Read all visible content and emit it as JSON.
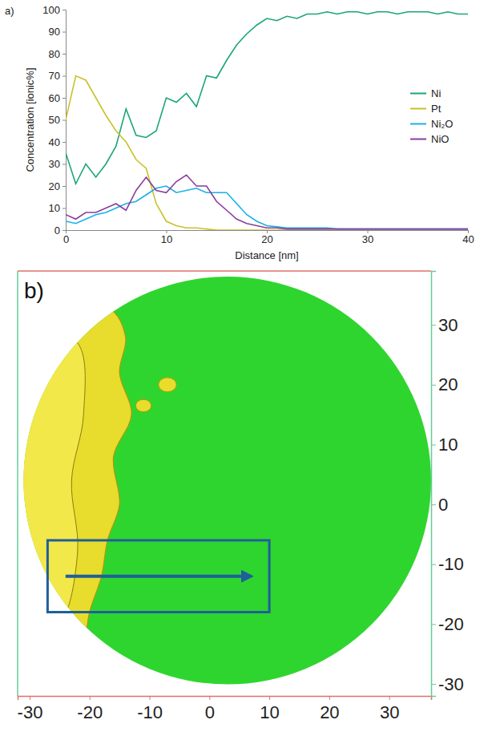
{
  "chart_data": [
    {
      "type": "line",
      "panel": "a)",
      "x_label": "Distance [nm]",
      "y_label": "Concentration [ionic%]",
      "x": [
        0,
        1,
        2,
        3,
        4,
        5,
        6,
        7,
        8,
        9,
        10,
        11,
        12,
        13,
        14,
        15,
        16,
        17,
        18,
        19,
        20,
        21,
        22,
        23,
        24,
        25,
        26,
        27,
        28,
        29,
        30,
        31,
        32,
        33,
        34,
        35,
        36,
        37,
        38,
        39,
        40
      ],
      "series": [
        {
          "name": "Ni",
          "color": "#1aa57a",
          "values": [
            35,
            21,
            30,
            24,
            30,
            38,
            55,
            43,
            42,
            45,
            60,
            58,
            62,
            56,
            70,
            69,
            77,
            84,
            89,
            93,
            96,
            95,
            97,
            96,
            98,
            98,
            99,
            98,
            99,
            99,
            98,
            99,
            99,
            98,
            99,
            99,
            99,
            98,
            99,
            98,
            98
          ]
        },
        {
          "name": "Pt",
          "color": "#c9c12c",
          "values": [
            50,
            70,
            68,
            60,
            52,
            45,
            40,
            32,
            28,
            12,
            4,
            2,
            1,
            1,
            0.5,
            0,
            0,
            0,
            0,
            0,
            0,
            0,
            0,
            0,
            0,
            0,
            0,
            0,
            0,
            0,
            0,
            0,
            0,
            0,
            0,
            0,
            0,
            0,
            0,
            0,
            0
          ]
        },
        {
          "name": "Ni₂O",
          "color": "#1ab0e8",
          "values": [
            4,
            3,
            5,
            7,
            8,
            10,
            12,
            13,
            16,
            19,
            20,
            17,
            18,
            19,
            17,
            17,
            17,
            12,
            7,
            4,
            2,
            1.5,
            1,
            1,
            1,
            1,
            1,
            0.5,
            0.5,
            0.5,
            0.5,
            0.5,
            0.5,
            0.5,
            0.5,
            0.5,
            0.5,
            0.5,
            0.5,
            0.5,
            0.5
          ]
        },
        {
          "name": "NiO",
          "color": "#8b3d9c",
          "values": [
            7,
            5,
            8,
            8,
            10,
            12,
            9,
            18,
            24,
            18,
            17,
            22,
            25,
            20,
            20,
            13,
            9,
            5,
            3,
            2,
            1,
            1,
            0.5,
            0.5,
            0.5,
            0.5,
            0.5,
            0.5,
            0.5,
            0.5,
            0.5,
            0.5,
            0.5,
            0.5,
            0.5,
            0.5,
            0.5,
            0.5,
            0.5,
            0.5,
            0.5
          ]
        }
      ],
      "xlim": [
        0,
        40
      ],
      "ylim": [
        0,
        100
      ],
      "xticks": [
        0,
        10,
        20,
        30,
        40
      ],
      "yticks": [
        0,
        10,
        20,
        30,
        40,
        50,
        60,
        70,
        80,
        90,
        100
      ],
      "legend": "right",
      "grid": false
    },
    {
      "type": "reconstruction",
      "panel": "b)",
      "xlim": [
        -32,
        37
      ],
      "ylim": [
        -32,
        39
      ],
      "xticks": [
        -30,
        -20,
        -10,
        0,
        10,
        20,
        30
      ],
      "yticks": [
        30,
        20,
        10,
        0,
        -10,
        -20,
        -30
      ]
    }
  ]
}
